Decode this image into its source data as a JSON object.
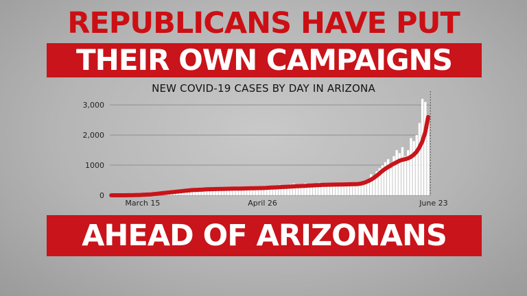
{
  "headline": {
    "line1": "REPUBLICANS HAVE PUT",
    "line2": "THEIR OWN CAMPAIGNS",
    "line3": "AHEAD OF ARIZONANS"
  },
  "colors": {
    "accent": "#c8141a",
    "bars": "#ffffff",
    "trend": "#c8141a",
    "grid": "#8f8f8f"
  },
  "chart_data": {
    "type": "bar",
    "title": "NEW COVID-19 CASES BY DAY IN ARIZONA",
    "xlabel": "",
    "ylabel": "",
    "ylim": [
      0,
      3300
    ],
    "yticks": [
      {
        "value": 0,
        "label": "0"
      },
      {
        "value": 1000,
        "label": "1000"
      },
      {
        "value": 2000,
        "label": "2,000"
      },
      {
        "value": 3000,
        "label": "3,000"
      }
    ],
    "xticks": [
      {
        "index": 11,
        "label": "March 15"
      },
      {
        "index": 53,
        "label": "April 26"
      },
      {
        "index": 111,
        "label": "June 23"
      }
    ],
    "grid": true,
    "series": [
      {
        "type": "bar",
        "values": [
          0,
          0,
          0,
          1,
          2,
          3,
          5,
          8,
          12,
          15,
          20,
          25,
          30,
          35,
          40,
          45,
          50,
          55,
          60,
          70,
          80,
          90,
          100,
          110,
          130,
          150,
          160,
          170,
          180,
          190,
          200,
          220,
          210,
          230,
          250,
          200,
          210,
          230,
          240,
          180,
          200,
          220,
          230,
          240,
          250,
          210,
          230,
          250,
          260,
          270,
          240,
          260,
          280,
          300,
          320,
          280,
          290,
          310,
          330,
          350,
          300,
          320,
          350,
          370,
          390,
          340,
          360,
          380,
          400,
          300,
          320,
          380,
          400,
          420,
          380,
          370,
          380,
          400,
          420,
          380,
          400,
          380,
          370,
          400,
          420,
          390,
          380,
          410,
          450,
          500,
          520,
          700,
          600,
          800,
          900,
          1000,
          1100,
          1200,
          900,
          1300,
          1500,
          1400,
          1600,
          1300,
          1500,
          1900,
          1800,
          2000,
          2400,
          3200,
          3100,
          2600
        ],
        "note": ""
      },
      {
        "type": "line",
        "values": [
          0,
          0,
          0,
          0,
          0,
          1,
          2,
          3,
          5,
          8,
          10,
          15,
          20,
          25,
          30,
          40,
          50,
          60,
          70,
          80,
          90,
          100,
          110,
          120,
          130,
          140,
          150,
          160,
          170,
          175,
          180,
          185,
          190,
          195,
          200,
          202,
          205,
          208,
          210,
          212,
          214,
          216,
          218,
          220,
          222,
          224,
          226,
          228,
          230,
          232,
          234,
          236,
          238,
          240,
          245,
          250,
          255,
          260,
          265,
          270,
          275,
          280,
          285,
          290,
          295,
          300,
          305,
          310,
          315,
          320,
          325,
          330,
          335,
          340,
          345,
          348,
          350,
          352,
          354,
          356,
          358,
          360,
          362,
          364,
          366,
          368,
          370,
          380,
          400,
          430,
          470,
          520,
          580,
          650,
          730,
          810,
          880,
          940,
          1000,
          1050,
          1100,
          1150,
          1180,
          1200,
          1230,
          1280,
          1350,
          1450,
          1600,
          1800,
          2100,
          2600
        ]
      }
    ]
  }
}
